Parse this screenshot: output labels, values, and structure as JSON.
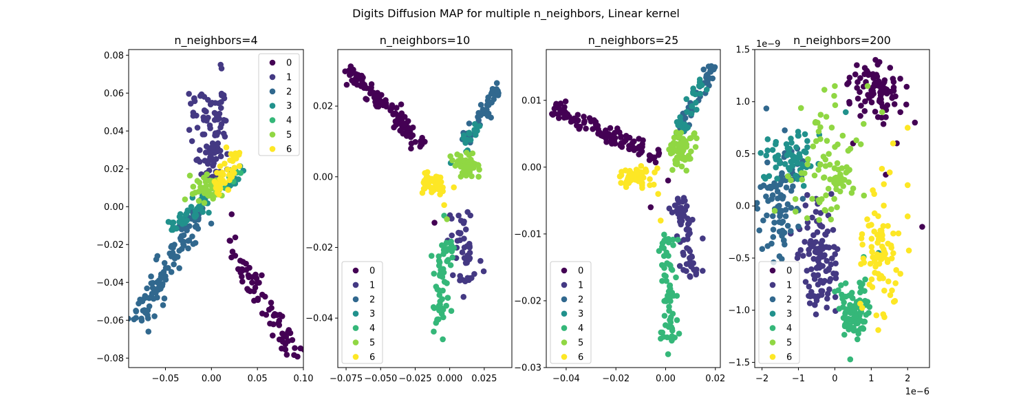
{
  "figure": {
    "suptitle": "Digits Diffusion MAP for multiple n_neighbors, Linear kernel"
  },
  "colors": [
    "#440154",
    "#443983",
    "#31688e",
    "#21918c",
    "#35b779",
    "#90d743",
    "#fde725"
  ],
  "chart_data": [
    {
      "type": "scatter",
      "title": "n_neighbors=4",
      "xlim": [
        -0.09,
        0.1
      ],
      "ylim": [
        -0.085,
        0.083
      ],
      "xticks": [
        -0.05,
        0.0,
        0.05,
        0.1
      ],
      "xtick_labels": [
        "−0.05",
        "0.00",
        "0.05",
        "0.10"
      ],
      "yticks": [
        -0.08,
        -0.06,
        -0.04,
        -0.02,
        0.0,
        0.02,
        0.04,
        0.06,
        0.08
      ],
      "ytick_labels": [
        "−0.08",
        "−0.06",
        "−0.04",
        "−0.02",
        "0.00",
        "0.02",
        "0.04",
        "0.06",
        "0.08"
      ],
      "x_offset_label": "",
      "y_offset_label": "",
      "legend": {
        "position": "upper right",
        "labels": [
          "0",
          "1",
          "2",
          "3",
          "4",
          "5",
          "6"
        ]
      },
      "series": [
        {
          "label": "0",
          "clusters": [
            {
              "shape": "seg",
              "x0": 0.018,
              "y0": -0.018,
              "x1": 0.092,
              "y1": -0.08,
              "w": 0.0035,
              "n": 75
            },
            {
              "shape": "pt",
              "x": 0.022,
              "y": -0.004
            }
          ]
        },
        {
          "label": "1",
          "clusters": [
            {
              "shape": "seg",
              "x0": -0.005,
              "y0": 0.06,
              "x1": -0.003,
              "y1": 0.015,
              "w": 0.006,
              "n": 70
            },
            {
              "shape": "seg",
              "x0": 0.01,
              "y0": 0.06,
              "x1": 0.006,
              "y1": 0.022,
              "w": 0.003,
              "n": 25
            },
            {
              "shape": "pt",
              "x": 0.01,
              "y": 0.075
            },
            {
              "shape": "pt",
              "x": 0.011,
              "y": 0.073
            }
          ]
        },
        {
          "label": "2",
          "clusters": [
            {
              "shape": "seg",
              "x0": -0.083,
              "y0": -0.062,
              "x1": -0.01,
              "y1": 0.0,
              "w": 0.004,
              "n": 110
            }
          ]
        },
        {
          "label": "3",
          "clusters": [
            {
              "shape": "seg",
              "x0": -0.045,
              "y0": -0.012,
              "x1": -0.005,
              "y1": 0.004,
              "w": 0.003,
              "n": 40
            },
            {
              "shape": "seg",
              "x0": 0.02,
              "y0": 0.01,
              "x1": 0.034,
              "y1": 0.022,
              "w": 0.002,
              "n": 14
            }
          ]
        },
        {
          "label": "4",
          "clusters": [
            {
              "shape": "seg",
              "x0": 0.01,
              "y0": 0.01,
              "x1": 0.03,
              "y1": 0.02,
              "w": 0.002,
              "n": 8
            }
          ]
        },
        {
          "label": "5",
          "clusters": [
            {
              "shape": "blob",
              "cx": -0.005,
              "cy": 0.01,
              "sx": 0.007,
              "sy": 0.004,
              "n": 45
            }
          ]
        },
        {
          "label": "6",
          "clusters": [
            {
              "shape": "seg",
              "x0": 0.004,
              "y0": 0.007,
              "x1": 0.028,
              "y1": 0.03,
              "w": 0.003,
              "n": 45
            }
          ]
        }
      ]
    },
    {
      "type": "scatter",
      "title": "n_neighbors=10",
      "xlim": [
        -0.081,
        0.045
      ],
      "ylim": [
        -0.054,
        0.036
      ],
      "xticks": [
        -0.075,
        -0.05,
        -0.025,
        0.0,
        0.025
      ],
      "xtick_labels": [
        "−0.075",
        "−0.050",
        "−0.025",
        "0.000",
        "0.025"
      ],
      "yticks": [
        -0.04,
        -0.02,
        0.0,
        0.02
      ],
      "ytick_labels": [
        "−0.04",
        "−0.02",
        "0.00",
        "0.02"
      ],
      "x_offset_label": "",
      "y_offset_label": "",
      "legend": {
        "position": "lower left",
        "labels": [
          "0",
          "1",
          "2",
          "3",
          "4",
          "5",
          "6"
        ]
      },
      "series": [
        {
          "label": "0",
          "clusters": [
            {
              "shape": "seg",
              "x0": -0.073,
              "y0": 0.031,
              "x1": -0.02,
              "y1": 0.009,
              "w": 0.0018,
              "n": 110
            },
            {
              "shape": "pt",
              "x": -0.028,
              "y": 0.008
            },
            {
              "shape": "pt",
              "x": -0.011,
              "y": -0.013
            }
          ]
        },
        {
          "label": "1",
          "clusters": [
            {
              "shape": "seg",
              "x0": 0.006,
              "y0": -0.01,
              "x1": 0.014,
              "y1": -0.03,
              "w": 0.0025,
              "n": 45
            },
            {
              "shape": "pt",
              "x": 0.01,
              "y": -0.034
            }
          ]
        },
        {
          "label": "2",
          "clusters": [
            {
              "shape": "seg",
              "x0": 0.01,
              "y0": 0.01,
              "x1": 0.038,
              "y1": 0.026,
              "w": 0.0015,
              "n": 45
            }
          ]
        },
        {
          "label": "3",
          "clusters": [
            {
              "shape": "seg",
              "x0": 0.005,
              "y0": 0.003,
              "x1": 0.022,
              "y1": 0.016,
              "w": 0.0015,
              "n": 20
            }
          ]
        },
        {
          "label": "4",
          "clusters": [
            {
              "shape": "seg",
              "x0": -0.002,
              "y0": -0.018,
              "x1": -0.008,
              "y1": -0.044,
              "w": 0.0018,
              "n": 60
            },
            {
              "shape": "pt",
              "x": -0.005,
              "y": -0.046
            },
            {
              "shape": "pt",
              "x": -0.004,
              "y": -0.011
            }
          ]
        },
        {
          "label": "5",
          "clusters": [
            {
              "shape": "blob",
              "cx": 0.011,
              "cy": 0.003,
              "sx": 0.005,
              "sy": 0.0015,
              "n": 50
            },
            {
              "shape": "pt",
              "x": -0.002,
              "y": -0.012
            }
          ]
        },
        {
          "label": "6",
          "clusters": [
            {
              "shape": "blob",
              "cx": -0.012,
              "cy": -0.002,
              "sx": 0.0045,
              "sy": 0.0012,
              "n": 60
            },
            {
              "shape": "pt",
              "x": -0.007,
              "y": -0.005
            },
            {
              "shape": "pt",
              "x": -0.004,
              "y": -0.008
            },
            {
              "shape": "pt",
              "x": 0.003,
              "y": -0.003
            }
          ]
        }
      ]
    },
    {
      "type": "scatter",
      "title": "n_neighbors=25",
      "xlim": [
        -0.048,
        0.022
      ],
      "ylim": [
        -0.03,
        0.0176
      ],
      "xticks": [
        -0.04,
        -0.02,
        0.0,
        0.02
      ],
      "xtick_labels": [
        "−0.04",
        "−0.02",
        "0.00",
        "0.02"
      ],
      "yticks": [
        -0.03,
        -0.02,
        -0.01,
        0.0,
        0.01
      ],
      "ytick_labels": [
        "−0.03",
        "−0.02",
        "−0.01",
        "0.00",
        "0.01"
      ],
      "x_offset_label": "",
      "y_offset_label": "",
      "legend": {
        "position": "lower left",
        "labels": [
          "0",
          "1",
          "2",
          "3",
          "4",
          "5",
          "6"
        ]
      },
      "series": [
        {
          "label": "0",
          "clusters": [
            {
              "shape": "seg",
              "x0": -0.045,
              "y0": 0.0088,
              "x1": -0.003,
              "y1": 0.0015,
              "w": 0.001,
              "n": 110
            },
            {
              "shape": "pt",
              "x": -0.006,
              "y": -0.006
            },
            {
              "shape": "pt",
              "x": 0.001,
              "y": -0.002
            }
          ]
        },
        {
          "label": "1",
          "clusters": [
            {
              "shape": "seg",
              "x0": 0.006,
              "y0": -0.0045,
              "x1": 0.011,
              "y1": -0.0165,
              "w": 0.0012,
              "n": 60
            }
          ]
        },
        {
          "label": "2",
          "clusters": [
            {
              "shape": "seg",
              "x0": 0.006,
              "y0": 0.005,
              "x1": 0.019,
              "y1": 0.0155,
              "w": 0.0007,
              "n": 40
            }
          ]
        },
        {
          "label": "3",
          "clusters": [
            {
              "shape": "seg",
              "x0": 0.004,
              "y0": 0.003,
              "x1": 0.015,
              "y1": 0.013,
              "w": 0.0008,
              "n": 30
            }
          ]
        },
        {
          "label": "4",
          "clusters": [
            {
              "shape": "seg",
              "x0": 0.0005,
              "y0": -0.01,
              "x1": 0.002,
              "y1": -0.026,
              "w": 0.001,
              "n": 70
            },
            {
              "shape": "pt",
              "x": 0.001,
              "y": -0.028
            }
          ]
        },
        {
          "label": "5",
          "clusters": [
            {
              "shape": "blob",
              "cx": 0.0055,
              "cy": 0.0025,
              "sx": 0.0025,
              "sy": 0.0012,
              "n": 50
            },
            {
              "shape": "seg",
              "x0": 0.005,
              "y0": 0.003,
              "x1": 0.013,
              "y1": 0.005,
              "w": 0.0006,
              "n": 12
            }
          ]
        },
        {
          "label": "6",
          "clusters": [
            {
              "shape": "blob",
              "cx": -0.012,
              "cy": -0.0015,
              "sx": 0.0035,
              "sy": 0.0007,
              "n": 55
            },
            {
              "shape": "pt",
              "x": -0.003,
              "y": -0.004
            },
            {
              "shape": "pt",
              "x": -0.002,
              "y": -0.008
            }
          ]
        }
      ]
    },
    {
      "type": "scatter",
      "title": "n_neighbors=200",
      "xlim": [
        -2.2,
        2.6
      ],
      "ylim": [
        -1.55,
        1.5
      ],
      "xticks": [
        -2,
        -1,
        0,
        1,
        2
      ],
      "xtick_labels": [
        "−2",
        "−1",
        "0",
        "1",
        "2"
      ],
      "yticks": [
        -1.5,
        -1.0,
        -0.5,
        0.0,
        0.5,
        1.0,
        1.5
      ],
      "ytick_labels": [
        "−1.5",
        "−1.0",
        "−0.5",
        "0.0",
        "0.5",
        "1.0",
        "1.5"
      ],
      "x_offset_label": "1e−6",
      "y_offset_label": "1e−9",
      "legend": {
        "position": "lower left",
        "labels": [
          "0",
          "1",
          "2",
          "3",
          "4",
          "5",
          "6"
        ]
      },
      "series": [
        {
          "label": "0",
          "clusters": [
            {
              "shape": "blob",
              "cx": 1.1,
              "cy": 1.1,
              "sx": 0.35,
              "sy": 0.15,
              "n": 85
            },
            {
              "shape": "pt",
              "x": 1.8,
              "y": 0.9
            },
            {
              "shape": "pt",
              "x": 2.2,
              "y": 0.8
            },
            {
              "shape": "pt",
              "x": 2.4,
              "y": -0.2
            },
            {
              "shape": "pt",
              "x": 0.5,
              "y": 0.6
            },
            {
              "shape": "pt",
              "x": 1.4,
              "y": 0.3
            }
          ]
        },
        {
          "label": "1",
          "clusters": [
            {
              "shape": "blob",
              "cx": -0.4,
              "cy": -0.6,
              "sx": 0.25,
              "sy": 0.22,
              "n": 80
            },
            {
              "shape": "blob",
              "cx": -0.6,
              "cy": -0.3,
              "sx": 0.3,
              "sy": 0.25,
              "n": 30
            }
          ]
        },
        {
          "label": "2",
          "clusters": [
            {
              "shape": "blob",
              "cx": -1.5,
              "cy": 0.1,
              "sx": 0.3,
              "sy": 0.25,
              "n": 90
            }
          ]
        },
        {
          "label": "3",
          "clusters": [
            {
              "shape": "blob",
              "cx": -1.1,
              "cy": 0.45,
              "sx": 0.35,
              "sy": 0.12,
              "n": 60
            },
            {
              "shape": "pt",
              "x": 0.3,
              "y": 0.9
            },
            {
              "shape": "pt",
              "x": 1.2,
              "y": -0.45
            }
          ]
        },
        {
          "label": "4",
          "clusters": [
            {
              "shape": "blob",
              "cx": 0.5,
              "cy": -1.0,
              "sx": 0.22,
              "sy": 0.15,
              "n": 85
            }
          ]
        },
        {
          "label": "5",
          "clusters": [
            {
              "shape": "blob",
              "cx": -0.3,
              "cy": 0.3,
              "sx": 0.45,
              "sy": 0.3,
              "n": 85
            },
            {
              "shape": "pt",
              "x": 0.9,
              "y": 1.15
            },
            {
              "shape": "pt",
              "x": 1.3,
              "y": 0.9
            },
            {
              "shape": "pt",
              "x": 0.8,
              "y": 0.1
            },
            {
              "shape": "pt",
              "x": 0.0,
              "y": 1.15
            }
          ]
        },
        {
          "label": "6",
          "clusters": [
            {
              "shape": "blob",
              "cx": 1.25,
              "cy": -0.45,
              "sx": 0.25,
              "sy": 0.35,
              "n": 80
            },
            {
              "shape": "pt",
              "x": 2.0,
              "y": 0.75
            },
            {
              "shape": "pt",
              "x": 2.0,
              "y": 0.2
            },
            {
              "shape": "pt",
              "x": 2.0,
              "y": -0.1
            },
            {
              "shape": "pt",
              "x": 1.6,
              "y": 0.6
            },
            {
              "shape": "pt",
              "x": 1.8,
              "y": -0.65
            }
          ]
        }
      ]
    }
  ]
}
